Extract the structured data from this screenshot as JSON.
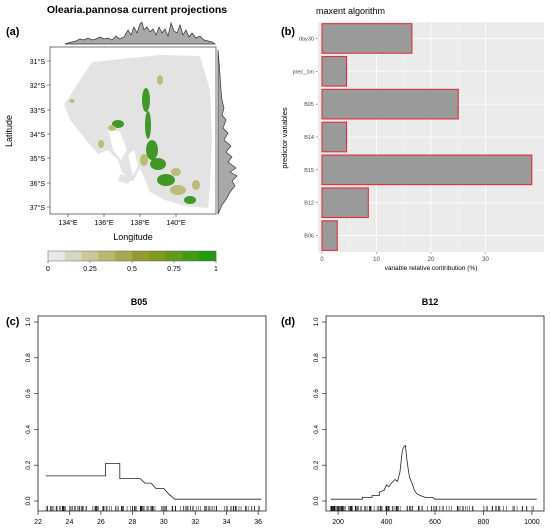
{
  "panels": {
    "a": {
      "letter": "(a)",
      "title": "Olearia.pannosa current projections",
      "xlabel": "Longitude",
      "ylabel": "Latitude",
      "xticks": [
        "134°E",
        "136°E",
        "138°E",
        "140°E"
      ],
      "yticks": [
        "31°S",
        "32°S",
        "33°S",
        "34°S",
        "35°S",
        "36°S",
        "37°S"
      ],
      "legend_ticks": [
        "0",
        "0.25",
        "0.5",
        "0.75",
        "1"
      ],
      "legend_colors": [
        "#e8e8e8",
        "#d6d6c4",
        "#c9c79a",
        "#b9b870",
        "#a8a84f",
        "#939a33",
        "#7e9a22",
        "#5f9a18",
        "#3f9a12",
        "#1f9a0e"
      ],
      "map_colors": {
        "land": "#e3e3e3",
        "suitable_low": "#b7b76a",
        "suitable_high": "#2f8f12"
      }
    },
    "b": {
      "letter": "(b)",
      "title": "maxent algorithm",
      "xlabel": "variable relative contribution (%)",
      "ylabel": "predictor variables",
      "colors": {
        "panel_bg": "#ebebeb",
        "bar_fill": "#9a9a9a",
        "bar_stroke": "#e0303a"
      }
    },
    "c": {
      "letter": "(c)"
    },
    "d": {
      "letter": "(d)"
    }
  },
  "chart_data": [
    {
      "type": "map",
      "panel": "a",
      "title": "Olearia.pannosa current projections",
      "xlabel": "Longitude",
      "ylabel": "Latitude",
      "xlim": [
        132.5,
        141.5
      ],
      "ylim": [
        -37.6,
        -30.5
      ],
      "legend_range": [
        0,
        1
      ]
    },
    {
      "type": "bar",
      "panel": "b",
      "orientation": "horizontal",
      "title": "maxent algorithm",
      "xlabel": "variable relative contribution (%)",
      "ylabel": "predictor variables",
      "categories": [
        "day30",
        "prec_1m",
        "B05",
        "B14",
        "B15",
        "B12",
        "B06"
      ],
      "values": [
        16.5,
        4.5,
        25,
        4.5,
        38.5,
        8.5,
        2.8
      ],
      "xlim": [
        0,
        40
      ],
      "xticks": [
        0,
        10,
        20,
        30
      ],
      "grid": true
    },
    {
      "type": "line",
      "panel": "c",
      "title": "B05",
      "xlim": [
        22,
        36.5
      ],
      "ylim": [
        0,
        1
      ],
      "xticks": [
        22,
        24,
        26,
        28,
        30,
        32,
        34,
        36
      ],
      "yticks": [
        0.0,
        0.2,
        0.4,
        0.6,
        0.8,
        1.0
      ],
      "series": [
        {
          "x": [
            22.5,
            26.3,
            26.3,
            27.2,
            27.2,
            28.5,
            28.8,
            29.2,
            29.5,
            30.0,
            30.3,
            30.7,
            36.2
          ],
          "y": [
            0.14,
            0.14,
            0.21,
            0.21,
            0.125,
            0.125,
            0.1,
            0.1,
            0.07,
            0.07,
            0.04,
            0.01,
            0.01
          ]
        }
      ],
      "rug_range": [
        22.5,
        36.2
      ]
    },
    {
      "type": "line",
      "panel": "d",
      "title": "B12",
      "xlim": [
        150,
        1050
      ],
      "ylim": [
        0,
        1
      ],
      "xticks": [
        200,
        400,
        600,
        800,
        1000
      ],
      "yticks": [
        0.0,
        0.2,
        0.4,
        0.6,
        0.8,
        1.0
      ],
      "series": [
        {
          "x": [
            170,
            300,
            300,
            340,
            340,
            370,
            370,
            390,
            400,
            410,
            420,
            435,
            445,
            455,
            460,
            465,
            470,
            478,
            483,
            490,
            495,
            505,
            515,
            525,
            540,
            560,
            590,
            600,
            1020
          ],
          "y": [
            0.01,
            0.01,
            0.02,
            0.02,
            0.03,
            0.03,
            0.05,
            0.06,
            0.09,
            0.08,
            0.1,
            0.12,
            0.11,
            0.16,
            0.22,
            0.28,
            0.3,
            0.31,
            0.24,
            0.17,
            0.13,
            0.1,
            0.06,
            0.04,
            0.03,
            0.02,
            0.02,
            0.01,
            0.01
          ]
        }
      ],
      "rug_range": [
        170,
        1020
      ]
    }
  ]
}
